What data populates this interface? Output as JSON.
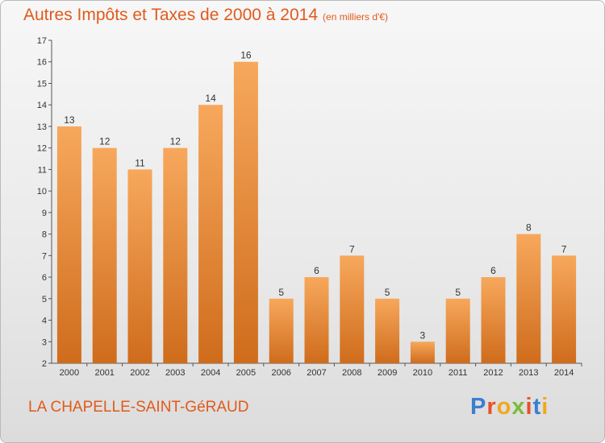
{
  "title": "Autres Impôts et Taxes de 2000 à 2014",
  "unit": "(en milliers d'€)",
  "commune": "LA CHAPELLE-SAINT-GéRAUD",
  "brand": {
    "text": "Proxiti",
    "letter_colors": [
      "#3a7fd0",
      "#e8502a",
      "#f0a81e",
      "#7cbc3a",
      "#e8502a",
      "#3a7fd0",
      "#f0a81e"
    ]
  },
  "colors": {
    "bar_light": "#f7a85c",
    "bar_dark": "#cf6c1c",
    "accent": "#e05a1c"
  },
  "chart_data": {
    "type": "bar",
    "categories": [
      "2000",
      "2001",
      "2002",
      "2003",
      "2004",
      "2005",
      "2006",
      "2007",
      "2008",
      "2009",
      "2010",
      "2011",
      "2012",
      "2013",
      "2014"
    ],
    "values": [
      13,
      12,
      11,
      12,
      14,
      16,
      5,
      6,
      7,
      5,
      3,
      5,
      6,
      8,
      7
    ],
    "ylim": [
      2,
      17
    ],
    "yticks": [
      2,
      3,
      4,
      5,
      6,
      7,
      8,
      9,
      10,
      11,
      12,
      13,
      14,
      15,
      16,
      17
    ],
    "grid": false,
    "legend": "none"
  }
}
